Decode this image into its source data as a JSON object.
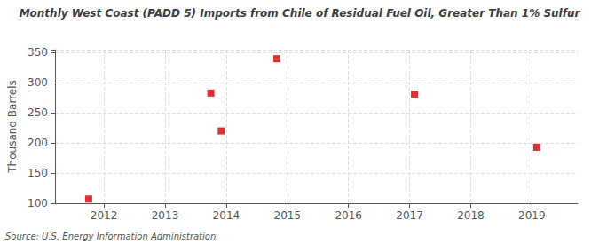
{
  "chart_data": {
    "type": "scatter",
    "title": "Monthly West Coast (PADD 5) Imports from Chile of Residual Fuel Oil, Greater Than 1% Sulfur",
    "ylabel": "Thousand Barrels",
    "annotation": "Source: U.S. Energy Information Administration",
    "x": [
      2011.75,
      2013.75,
      2013.92,
      2014.83,
      2017.08,
      2019.08
    ],
    "values": [
      107,
      283,
      220,
      340,
      281,
      193
    ],
    "color": "#cc0000",
    "marker": "square",
    "xlim": [
      2011.2,
      2019.75
    ],
    "xticks": [
      2012,
      2013,
      2014,
      2015,
      2016,
      2017,
      2018,
      2019
    ],
    "ylim": [
      100,
      355
    ],
    "yticks": [
      100,
      150,
      200,
      250,
      300,
      350
    ],
    "grid": true
  }
}
